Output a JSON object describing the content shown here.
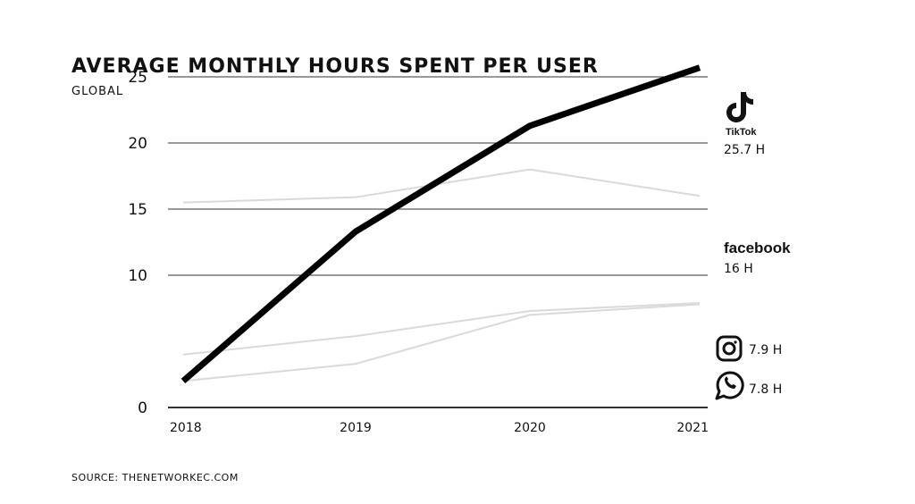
{
  "header": {
    "title": "AVERAGE MONTHLY HOURS SPENT PER USER",
    "subtitle": "GLOBAL"
  },
  "footer": {
    "source": "SOURCE: THENETWORKEC.COM"
  },
  "colors": {
    "grid": "#333333",
    "tiktok": "#000000",
    "others": "#d9d9d9"
  },
  "legend": {
    "tiktok_brand": "TikTok",
    "tiktok_value": "25.7 H",
    "facebook_brand": "facebook",
    "facebook_value": "16 H",
    "instagram_value": "7.9 H",
    "whatsapp_value": "7.8 H",
    "icons": [
      "tiktok-icon",
      "instagram-icon",
      "whatsapp-icon"
    ]
  },
  "chart_data": {
    "type": "line",
    "title": "AVERAGE MONTHLY HOURS SPENT PER USER",
    "subtitle": "GLOBAL",
    "x": [
      "2018",
      "2019",
      "2020",
      "2021"
    ],
    "ylim": [
      0,
      27
    ],
    "yticks": [
      0,
      10,
      15,
      20,
      25
    ],
    "grid": true,
    "series": [
      {
        "name": "TikTok",
        "values": [
          2.0,
          13.3,
          21.3,
          25.7
        ]
      },
      {
        "name": "facebook",
        "values": [
          15.5,
          15.9,
          18.0,
          16.0
        ]
      },
      {
        "name": "instagram",
        "values": [
          4.0,
          5.4,
          7.3,
          7.9
        ]
      },
      {
        "name": "whatsapp",
        "values": [
          2.0,
          3.3,
          7.0,
          7.8
        ]
      }
    ],
    "source": "SOURCE: THENETWORKEC.COM"
  }
}
